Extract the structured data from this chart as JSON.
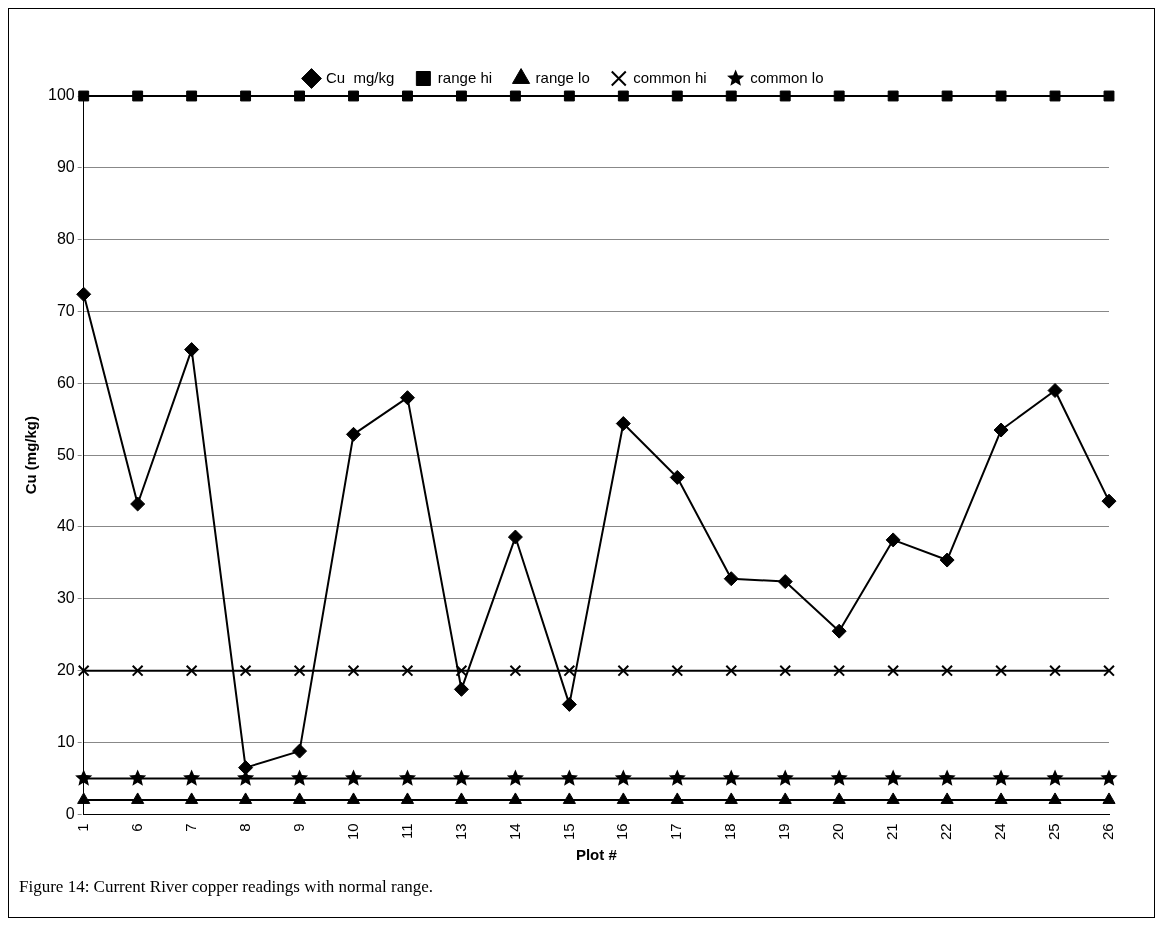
{
  "chart_data": {
    "type": "line",
    "xlabel": "Plot #",
    "ylabel": "Cu (mg/kg)",
    "categories": [
      "1",
      "6",
      "7",
      "8",
      "9",
      "10",
      "11",
      "13",
      "14",
      "15",
      "16",
      "17",
      "18",
      "19",
      "20",
      "21",
      "22",
      "24",
      "25",
      "26"
    ],
    "series": [
      {
        "name": "Cu  mg/kg",
        "color": "#000000",
        "marker": "diamond",
        "values": [
          72.4,
          43.2,
          64.7,
          6.5,
          8.8,
          52.9,
          58.0,
          17.4,
          38.6,
          15.3,
          54.4,
          46.9,
          32.8,
          32.4,
          25.5,
          38.2,
          35.4,
          53.5,
          59.0,
          43.6
        ]
      },
      {
        "name": "range hi",
        "color": "#000000",
        "marker": "square",
        "values": [
          100,
          100,
          100,
          100,
          100,
          100,
          100,
          100,
          100,
          100,
          100,
          100,
          100,
          100,
          100,
          100,
          100,
          100,
          100,
          100
        ]
      },
      {
        "name": "range lo",
        "color": "#000000",
        "marker": "triangle",
        "values": [
          2,
          2,
          2,
          2,
          2,
          2,
          2,
          2,
          2,
          2,
          2,
          2,
          2,
          2,
          2,
          2,
          2,
          2,
          2,
          2
        ]
      },
      {
        "name": "common hi",
        "color": "#000000",
        "marker": "cross",
        "values": [
          20,
          20,
          20,
          20,
          20,
          20,
          20,
          20,
          20,
          20,
          20,
          20,
          20,
          20,
          20,
          20,
          20,
          20,
          20,
          20
        ]
      },
      {
        "name": "common lo",
        "color": "#000000",
        "marker": "star",
        "values": [
          5,
          5,
          5,
          5,
          5,
          5,
          5,
          5,
          5,
          5,
          5,
          5,
          5,
          5,
          5,
          5,
          5,
          5,
          5,
          5
        ]
      }
    ],
    "ylim": [
      0,
      100
    ],
    "yticks": [
      0,
      10,
      20,
      30,
      40,
      50,
      60,
      70,
      80,
      90,
      100
    ],
    "grid": "y",
    "legend": "top",
    "annotations": [
      "Figure 14: Current River copper readings with normal range."
    ]
  }
}
